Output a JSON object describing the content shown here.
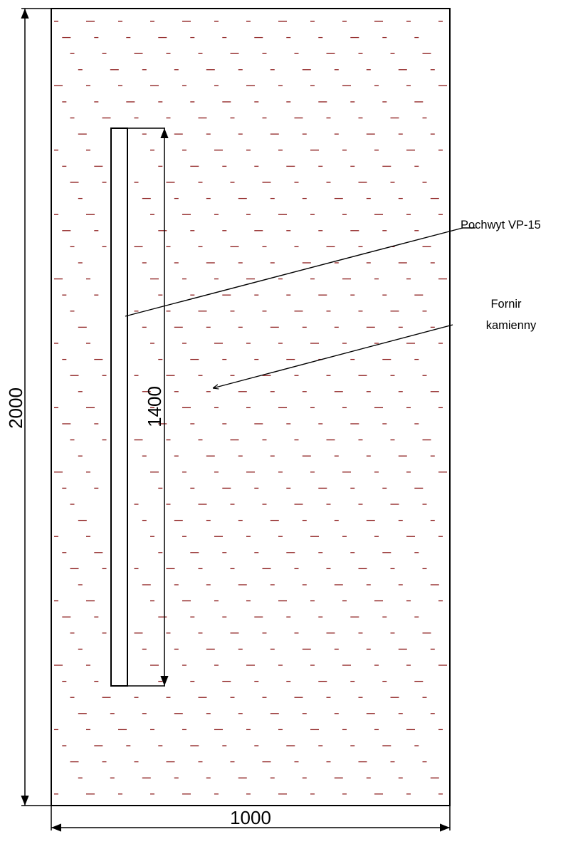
{
  "drawing": {
    "dimensions": {
      "height": "2000",
      "width": "1000",
      "handle_length": "1400"
    },
    "labels": {
      "handle": "Pochwyt VP-15",
      "veneer_line1": "Fornir",
      "veneer_line2": "kamienny"
    },
    "colors": {
      "lines": "#000000",
      "hatch": "#8b1a1a",
      "background": "#ffffff"
    }
  }
}
